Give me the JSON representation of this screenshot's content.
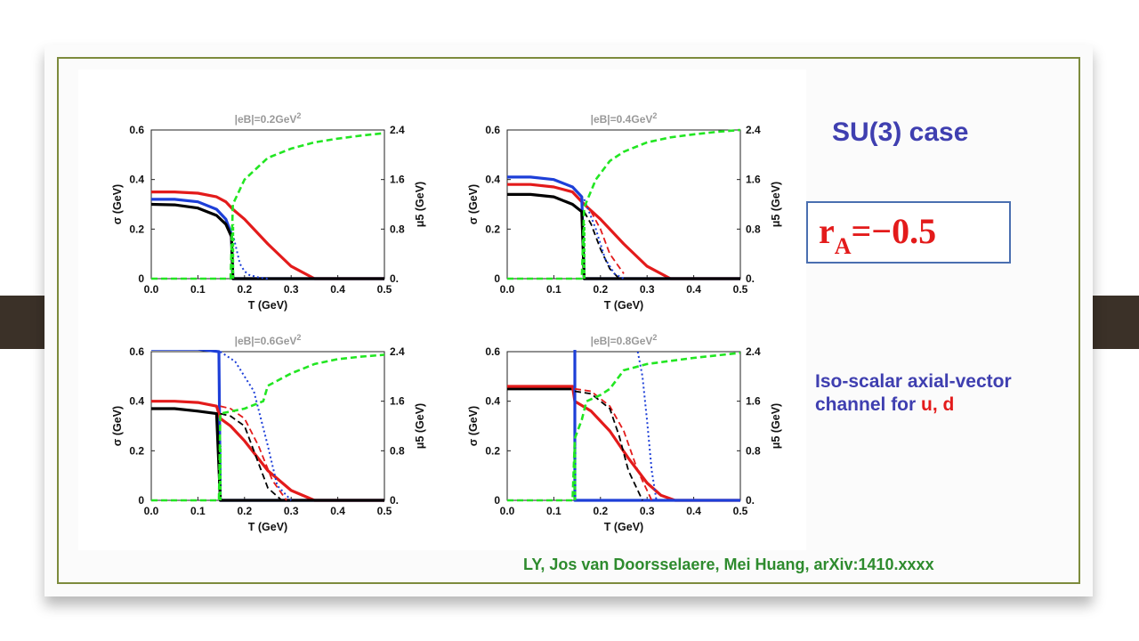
{
  "heading": "SU(3) case",
  "ratio": {
    "main": "r",
    "sub": "A",
    "rest": "=−0.5"
  },
  "description": {
    "line1": "Iso-scalar axial-vector",
    "line2_prefix": "channel for ",
    "line2_highlight": "u, d"
  },
  "citation": "LY, Jos van Doorsselaere, Mei Huang, arXiv:1410.xxxx",
  "colors": {
    "sigma_ud": "#e31b1b",
    "sigma_light": "#000000",
    "sigma_s": "#1d3fd8",
    "mu5": "#22e622",
    "accent": "#3f3fb0"
  },
  "chart_data": [
    {
      "type": "line",
      "title": "|eB|=0.2GeV",
      "title_sup": "2",
      "xlabel": "T (GeV)",
      "ylabel": "σ (GeV)",
      "y2label": "μ5 (GeV)",
      "xlim": [
        0,
        0.5
      ],
      "ylim": [
        0,
        0.6
      ],
      "y2lim": [
        0,
        2.4
      ],
      "xticks": [
        "0.0",
        "0.1",
        "0.2",
        "0.3",
        "0.4",
        "0.5"
      ],
      "yticks": [
        "0",
        "0.2",
        "0.4",
        "0.6"
      ],
      "y2ticks": [
        "0.",
        "0.8",
        "1.6",
        "2.4"
      ],
      "series": [
        {
          "key": "red",
          "axis": "left",
          "style": "solid",
          "color": "#e31b1b",
          "x": [
            0,
            0.05,
            0.1,
            0.14,
            0.16,
            0.175,
            0.2,
            0.25,
            0.3,
            0.35,
            0.5
          ],
          "y": [
            0.35,
            0.35,
            0.345,
            0.33,
            0.31,
            0.28,
            0.24,
            0.14,
            0.05,
            0,
            0
          ]
        },
        {
          "key": "blue",
          "axis": "left",
          "style": "solid",
          "color": "#1d3fd8",
          "x": [
            0,
            0.05,
            0.1,
            0.14,
            0.16,
            0.172,
            0.175,
            0.5
          ],
          "y": [
            0.32,
            0.32,
            0.31,
            0.28,
            0.24,
            0.18,
            0,
            0
          ]
        },
        {
          "key": "black",
          "axis": "left",
          "style": "solid",
          "color": "#000000",
          "x": [
            0,
            0.05,
            0.1,
            0.14,
            0.16,
            0.172,
            0.175,
            0.5
          ],
          "y": [
            0.3,
            0.298,
            0.285,
            0.255,
            0.22,
            0.17,
            0,
            0
          ]
        },
        {
          "key": "blue_dot",
          "axis": "left",
          "style": "dotted",
          "color": "#1d3fd8",
          "x": [
            0.175,
            0.19,
            0.2,
            0.21,
            0.23,
            0.25
          ],
          "y": [
            0.18,
            0.06,
            0.03,
            0.015,
            0.005,
            0
          ]
        },
        {
          "key": "green",
          "axis": "right",
          "style": "dashed",
          "color": "#22e622",
          "x": [
            0,
            0.17,
            0.175,
            0.2,
            0.25,
            0.3,
            0.35,
            0.4,
            0.45,
            0.5
          ],
          "y": [
            0,
            0,
            1.2,
            1.6,
            1.95,
            2.1,
            2.2,
            2.26,
            2.31,
            2.35
          ]
        }
      ],
      "markers": {
        "line_x": 0.175,
        "line_color": "#22e622"
      }
    },
    {
      "type": "line",
      "title": "|eB|=0.4GeV",
      "title_sup": "2",
      "xlabel": "T (GeV)",
      "ylabel": "σ (GeV)",
      "y2label": "μ5 (GeV)",
      "xlim": [
        0,
        0.5
      ],
      "ylim": [
        0,
        0.6
      ],
      "y2lim": [
        0,
        2.4
      ],
      "xticks": [
        "0.0",
        "0.1",
        "0.2",
        "0.3",
        "0.4",
        "0.5"
      ],
      "yticks": [
        "0",
        "0.2",
        "0.4",
        "0.6"
      ],
      "y2ticks": [
        "0.",
        "0.8",
        "1.6",
        "2.4"
      ],
      "series": [
        {
          "key": "red",
          "axis": "left",
          "style": "solid",
          "color": "#e31b1b",
          "x": [
            0,
            0.05,
            0.1,
            0.14,
            0.165,
            0.2,
            0.25,
            0.3,
            0.35,
            0.5
          ],
          "y": [
            0.38,
            0.38,
            0.37,
            0.35,
            0.3,
            0.24,
            0.14,
            0.05,
            0,
            0
          ]
        },
        {
          "key": "blue",
          "axis": "left",
          "style": "solid",
          "color": "#1d3fd8",
          "x": [
            0,
            0.05,
            0.1,
            0.14,
            0.16,
            0.165,
            0.5
          ],
          "y": [
            0.41,
            0.41,
            0.4,
            0.37,
            0.33,
            0,
            0
          ]
        },
        {
          "key": "black",
          "axis": "left",
          "style": "solid",
          "color": "#000000",
          "x": [
            0,
            0.05,
            0.1,
            0.14,
            0.16,
            0.165,
            0.5
          ],
          "y": [
            0.34,
            0.34,
            0.33,
            0.3,
            0.27,
            0,
            0
          ]
        },
        {
          "key": "red_dash",
          "axis": "left",
          "style": "dashed",
          "color": "#e31b1b",
          "x": [
            0.165,
            0.18,
            0.2,
            0.22,
            0.25
          ],
          "y": [
            0.3,
            0.27,
            0.2,
            0.1,
            0.02
          ]
        },
        {
          "key": "black_dash",
          "axis": "left",
          "style": "dashed",
          "color": "#000000",
          "x": [
            0.165,
            0.18,
            0.2,
            0.22,
            0.24
          ],
          "y": [
            0.27,
            0.22,
            0.12,
            0.04,
            0
          ]
        },
        {
          "key": "blue_dot",
          "axis": "left",
          "style": "dotted",
          "color": "#1d3fd8",
          "x": [
            0.165,
            0.19,
            0.21,
            0.23,
            0.25
          ],
          "y": [
            0.32,
            0.2,
            0.08,
            0.02,
            0
          ]
        },
        {
          "key": "green",
          "axis": "right",
          "style": "dashed",
          "color": "#22e622",
          "x": [
            0,
            0.16,
            0.165,
            0.19,
            0.22,
            0.25,
            0.3,
            0.35,
            0.4,
            0.45,
            0.5
          ],
          "y": [
            0,
            0,
            1.15,
            1.6,
            1.9,
            2.05,
            2.2,
            2.28,
            2.33,
            2.37,
            2.4
          ]
        }
      ],
      "markers": {
        "line_x": 0.165,
        "line_color": "#22e622"
      }
    },
    {
      "type": "line",
      "title": "|eB|=0.6GeV",
      "title_sup": "2",
      "xlabel": "T (GeV)",
      "ylabel": "σ (GeV)",
      "y2label": "μ5 (GeV)",
      "xlim": [
        0,
        0.5
      ],
      "ylim": [
        0,
        0.6
      ],
      "y2lim": [
        0,
        2.4
      ],
      "xticks": [
        "0.0",
        "0.1",
        "0.2",
        "0.3",
        "0.4",
        "0.5"
      ],
      "yticks": [
        "0",
        "0.2",
        "0.4",
        "0.6"
      ],
      "y2ticks": [
        "0.",
        "0.8",
        "1.6",
        "2.4"
      ],
      "series": [
        {
          "key": "blue",
          "axis": "left",
          "style": "solid",
          "color": "#1d3fd8",
          "x": [
            0,
            0.1,
            0.145,
            0.148,
            0.5
          ],
          "y": [
            0.61,
            0.61,
            0.6,
            0,
            0
          ]
        },
        {
          "key": "red",
          "axis": "left",
          "style": "solid",
          "color": "#e31b1b",
          "x": [
            0,
            0.05,
            0.1,
            0.14,
            0.148,
            0.17,
            0.2,
            0.25,
            0.3,
            0.35,
            0.5
          ],
          "y": [
            0.4,
            0.4,
            0.395,
            0.38,
            0.33,
            0.3,
            0.24,
            0.12,
            0.04,
            0,
            0
          ]
        },
        {
          "key": "black",
          "axis": "left",
          "style": "solid",
          "color": "#000000",
          "x": [
            0,
            0.05,
            0.1,
            0.14,
            0.148,
            0.5
          ],
          "y": [
            0.37,
            0.37,
            0.36,
            0.35,
            0,
            0
          ]
        },
        {
          "key": "red_dash",
          "axis": "left",
          "style": "dashed",
          "color": "#e31b1b",
          "x": [
            0.148,
            0.17,
            0.2,
            0.23,
            0.26,
            0.29
          ],
          "y": [
            0.38,
            0.37,
            0.33,
            0.22,
            0.08,
            0
          ]
        },
        {
          "key": "black_dash",
          "axis": "left",
          "style": "dashed",
          "color": "#000000",
          "x": [
            0.148,
            0.17,
            0.2,
            0.23,
            0.25,
            0.28
          ],
          "y": [
            0.35,
            0.34,
            0.3,
            0.15,
            0.05,
            0
          ]
        },
        {
          "key": "blue_dot",
          "axis": "left",
          "style": "dotted",
          "color": "#1d3fd8",
          "x": [
            0.148,
            0.18,
            0.22,
            0.25,
            0.27,
            0.3
          ],
          "y": [
            0.6,
            0.56,
            0.44,
            0.22,
            0.06,
            0
          ]
        },
        {
          "key": "green",
          "axis": "right",
          "style": "dashed",
          "color": "#22e622",
          "x": [
            0,
            0.145,
            0.148,
            0.2,
            0.24,
            0.25,
            0.3,
            0.35,
            0.4,
            0.45,
            0.5
          ],
          "y": [
            0,
            0,
            1.4,
            1.48,
            1.6,
            1.85,
            2.05,
            2.2,
            2.28,
            2.32,
            2.35
          ]
        }
      ],
      "markers": {
        "line_x": 0.148,
        "line_color": "#22e622"
      }
    },
    {
      "type": "line",
      "title": "|eB|=0.8GeV",
      "title_sup": "2",
      "xlabel": "T (GeV)",
      "ylabel": "σ (GeV)",
      "y2label": "μ5 (GeV)",
      "xlim": [
        0,
        0.5
      ],
      "ylim": [
        0,
        0.6
      ],
      "y2lim": [
        0,
        2.4
      ],
      "xticks": [
        "0.0",
        "0.1",
        "0.2",
        "0.3",
        "0.4",
        "0.5"
      ],
      "yticks": [
        "0",
        "0.2",
        "0.4",
        "0.6"
      ],
      "y2ticks": [
        "0.",
        "0.8",
        "1.6",
        "2.4"
      ],
      "series": [
        {
          "key": "black",
          "axis": "left",
          "style": "solid",
          "color": "#000000",
          "x": [
            0,
            0.1,
            0.14,
            0.145
          ],
          "y": [
            0.45,
            0.45,
            0.45,
            0.45
          ]
        },
        {
          "key": "red",
          "axis": "left",
          "style": "solid",
          "color": "#e31b1b",
          "x": [
            0,
            0.05,
            0.1,
            0.14,
            0.145,
            0.18,
            0.22,
            0.26,
            0.3,
            0.33,
            0.36,
            0.5
          ],
          "y": [
            0.46,
            0.46,
            0.46,
            0.46,
            0.4,
            0.36,
            0.28,
            0.17,
            0.07,
            0.02,
            0,
            0
          ]
        },
        {
          "key": "blue",
          "axis": "left",
          "style": "solid",
          "color": "#1d3fd8",
          "x": [
            0.14,
            0.145,
            0.145,
            0.5
          ],
          "y": [
            0.63,
            0.63,
            0,
            0
          ]
        },
        {
          "key": "red_dash",
          "axis": "left",
          "style": "dashed",
          "color": "#e31b1b",
          "x": [
            0.145,
            0.18,
            0.22,
            0.25,
            0.28,
            0.31
          ],
          "y": [
            0.45,
            0.44,
            0.38,
            0.28,
            0.12,
            0
          ]
        },
        {
          "key": "black_dash",
          "axis": "left",
          "style": "dashed",
          "color": "#000000",
          "x": [
            0.145,
            0.18,
            0.22,
            0.24,
            0.26,
            0.29
          ],
          "y": [
            0.44,
            0.43,
            0.37,
            0.26,
            0.12,
            0
          ]
        },
        {
          "key": "blue_dot",
          "axis": "left",
          "style": "dotted",
          "color": "#1d3fd8",
          "x": [
            0.28,
            0.29,
            0.3,
            0.31,
            0.32
          ],
          "y": [
            0.6,
            0.5,
            0.32,
            0.12,
            0
          ]
        },
        {
          "key": "green",
          "axis": "right",
          "style": "dashed",
          "color": "#22e622",
          "x": [
            0,
            0.14,
            0.145,
            0.16,
            0.17,
            0.2,
            0.22,
            0.25,
            0.3,
            0.35,
            0.4,
            0.45,
            0.5
          ],
          "y": [
            0,
            0,
            1.0,
            1.3,
            1.6,
            1.7,
            1.8,
            2.1,
            2.2,
            2.25,
            2.3,
            2.34,
            2.38
          ]
        }
      ],
      "markers": {
        "line_x": 0.145,
        "line_color": "#22e622"
      }
    }
  ]
}
